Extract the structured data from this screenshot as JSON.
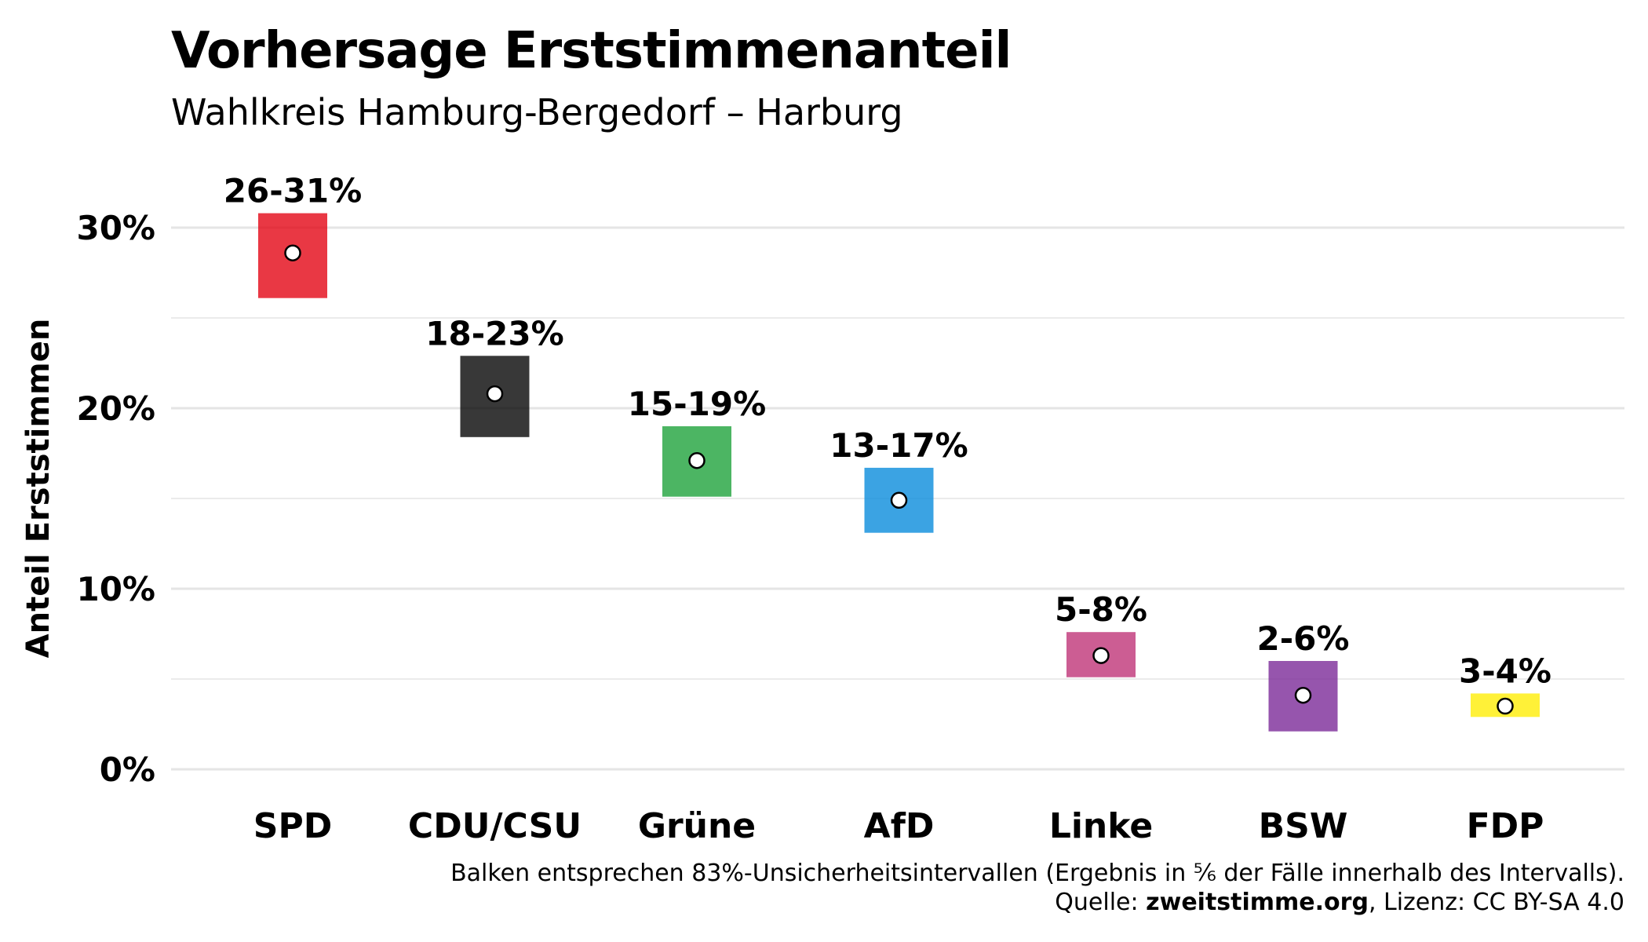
{
  "chart_data": {
    "type": "bar",
    "title": "Vorhersage Erststimmenanteil",
    "subtitle": "Wahlkreis Hamburg-Bergedorf – Harburg",
    "ylabel": "Anteil Erststimmen",
    "xlabel": "",
    "ylim": [
      0,
      35
    ],
    "yticks": [
      0,
      10,
      20,
      30
    ],
    "ytick_labels": [
      "0%",
      "10%",
      "20%",
      "30%"
    ],
    "grid": true,
    "legend": "none",
    "categories": [
      "SPD",
      "CDU/CSU",
      "Grüne",
      "AfD",
      "Linke",
      "BSW",
      "FDP"
    ],
    "intervals": [
      {
        "party": "SPD",
        "low": 26.1,
        "high": 30.8,
        "point": 28.6,
        "label": "26-31%",
        "color": "#E3000F"
      },
      {
        "party": "CDU/CSU",
        "low": 18.4,
        "high": 22.9,
        "point": 20.8,
        "label": "18-23%",
        "color": "#000000"
      },
      {
        "party": "Grüne",
        "low": 15.1,
        "high": 19.0,
        "point": 17.1,
        "label": "15-19%",
        "color": "#1AA037"
      },
      {
        "party": "AfD",
        "low": 13.1,
        "high": 16.7,
        "point": 14.9,
        "label": "13-17%",
        "color": "#0489DB"
      },
      {
        "party": "Linke",
        "low": 5.1,
        "high": 7.6,
        "point": 6.3,
        "label": "5-8%",
        "color": "#BE3075"
      },
      {
        "party": "BSW",
        "low": 2.1,
        "high": 6.0,
        "point": 4.1,
        "label": "2-6%",
        "color": "#792596"
      },
      {
        "party": "FDP",
        "low": 2.9,
        "high": 4.2,
        "point": 3.5,
        "label": "3-4%",
        "color": "#FFED00"
      }
    ],
    "caption_line1": "Balken entsprechen 83%-Unsicherheitsintervallen (Ergebnis in ⅚ der Fälle innerhalb des Intervalls).",
    "caption_source_label": "Quelle: ",
    "caption_source": "zweitstimme.org",
    "caption_license": ", Lizenz: CC BY-SA 4.0"
  }
}
